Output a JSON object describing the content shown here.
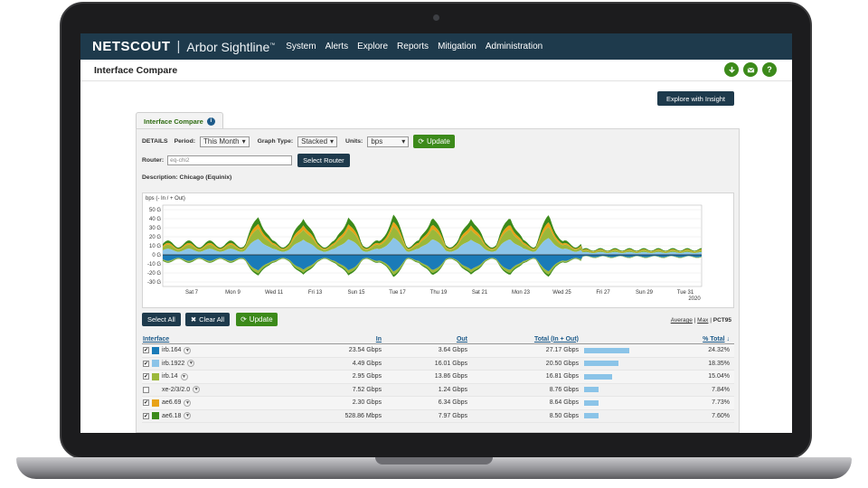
{
  "app": {
    "logo": "NETSCOUT",
    "divider": "|",
    "product": "Arbor Sightline",
    "tm": "™"
  },
  "nav": [
    "System",
    "Alerts",
    "Explore",
    "Reports",
    "Mitigation",
    "Administration"
  ],
  "page": {
    "title": "Interface Compare"
  },
  "actions": {
    "download_icon": "download-icon",
    "mail_icon": "mail-icon",
    "help_icon": "help-icon",
    "help_label": "?"
  },
  "insight_button": "Explore with Insight",
  "panel": {
    "tab_label": "Interface Compare",
    "info_label": "i",
    "details_label": "DETAILS",
    "period_label": "Period:",
    "period_value": "This Month",
    "graph_type_label": "Graph Type:",
    "graph_type_value": "Stacked",
    "units_label": "Units:",
    "units_value": "bps",
    "update_label": "Update",
    "router_label": "Router:",
    "router_value": "eq-chi2",
    "select_router": "Select Router",
    "description": "Description: Chicago (Equinix)"
  },
  "chart_data": {
    "type": "area",
    "ylabel": "bps (- In / + Out)",
    "yticks": [
      "50 G",
      "40 G",
      "30 G",
      "20 G",
      "10 G",
      "0 G",
      "-10 G",
      "-20 G",
      "-30 G"
    ],
    "xticks": [
      "Sat 7",
      "Mon 9",
      "Wed 11",
      "Fri 13",
      "Sun 15",
      "Tue 17",
      "Thu 19",
      "Sat 21",
      "Mon 23",
      "Wed 25",
      "Fri 27",
      "Sun 29",
      "Tue 31"
    ],
    "year_label": "2020",
    "ylim": [
      -35,
      55
    ],
    "colors": {
      "green": "#3c8a1a",
      "orange": "#e8a317",
      "lightblue": "#8bc4e8",
      "olive": "#9bb83a",
      "blue": "#1a7bb8"
    }
  },
  "table_controls": {
    "select_all": "Select All",
    "clear_all": "Clear All",
    "update": "Update",
    "average": "Average",
    "sep": "|",
    "max": "Max",
    "sep2": "|",
    "pct95": "PCT95"
  },
  "table": {
    "headers": {
      "interface": "Interface",
      "in": "In",
      "out": "Out",
      "total": "Total (In + Out)",
      "pct": "% Total"
    },
    "rows": [
      {
        "checked": "✔",
        "color": "#1a7bb8",
        "name": "irb.164",
        "in": "23.54 Gbps",
        "out": "3.64 Gbps",
        "total": "27.17 Gbps",
        "bar": 1.0,
        "pct": "24.32%"
      },
      {
        "checked": "✔",
        "color": "#8bc4e8",
        "name": "irb.1922",
        "in": "4.49 Gbps",
        "out": "16.01 Gbps",
        "total": "20.50 Gbps",
        "bar": 0.75,
        "pct": "18.35%"
      },
      {
        "checked": "✔",
        "color": "#9bb83a",
        "name": "irb.14",
        "in": "2.95 Gbps",
        "out": "13.86 Gbps",
        "total": "16.81 Gbps",
        "bar": 0.62,
        "pct": "15.04%"
      },
      {
        "checked": "",
        "color": "",
        "name": "xe-2/3/2.0",
        "in": "7.52 Gbps",
        "out": "1.24 Gbps",
        "total": "8.76 Gbps",
        "bar": 0.32,
        "pct": "7.84%"
      },
      {
        "checked": "✔",
        "color": "#e8a317",
        "name": "ae6.69",
        "in": "2.30 Gbps",
        "out": "6.34 Gbps",
        "total": "8.64 Gbps",
        "bar": 0.32,
        "pct": "7.73%"
      },
      {
        "checked": "✔",
        "color": "#3c8a1a",
        "name": "ae6.18",
        "in": "528.86 Mbps",
        "out": "7.97 Gbps",
        "total": "8.50 Gbps",
        "bar": 0.31,
        "pct": "7.60%"
      }
    ]
  }
}
